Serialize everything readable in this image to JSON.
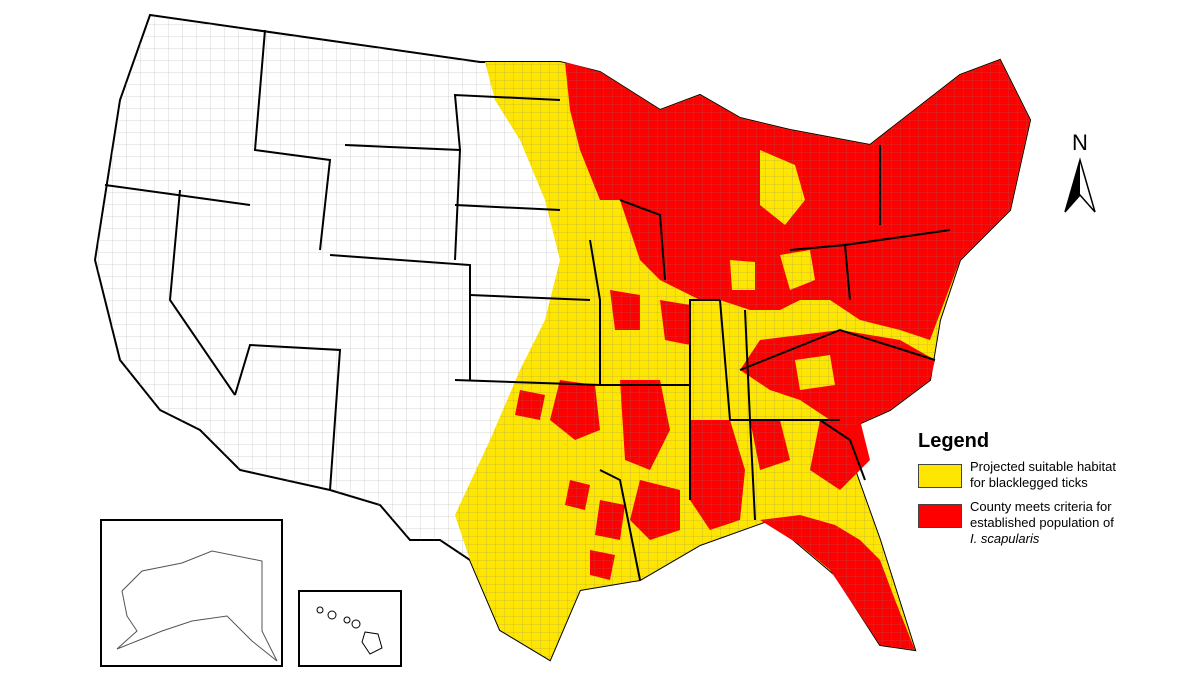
{
  "legend": {
    "title": "Legend",
    "items": [
      {
        "label_line1": "Projected suitable habitat",
        "label_line2": "for blacklegged ticks",
        "color": "#FFE600"
      },
      {
        "label_line1": "County meets criteria for",
        "label_line2": "established population of",
        "label_line3": "I. scapularis",
        "color": "#FF0000"
      }
    ]
  },
  "north_arrow": {
    "label": "N"
  },
  "colors": {
    "habitat": "#FFE600",
    "established": "#FF0000",
    "outside": "#FFFFFF",
    "state_border": "#000000",
    "county_border": "#8c8c8c"
  },
  "insets": [
    "Alaska",
    "Hawaii"
  ]
}
